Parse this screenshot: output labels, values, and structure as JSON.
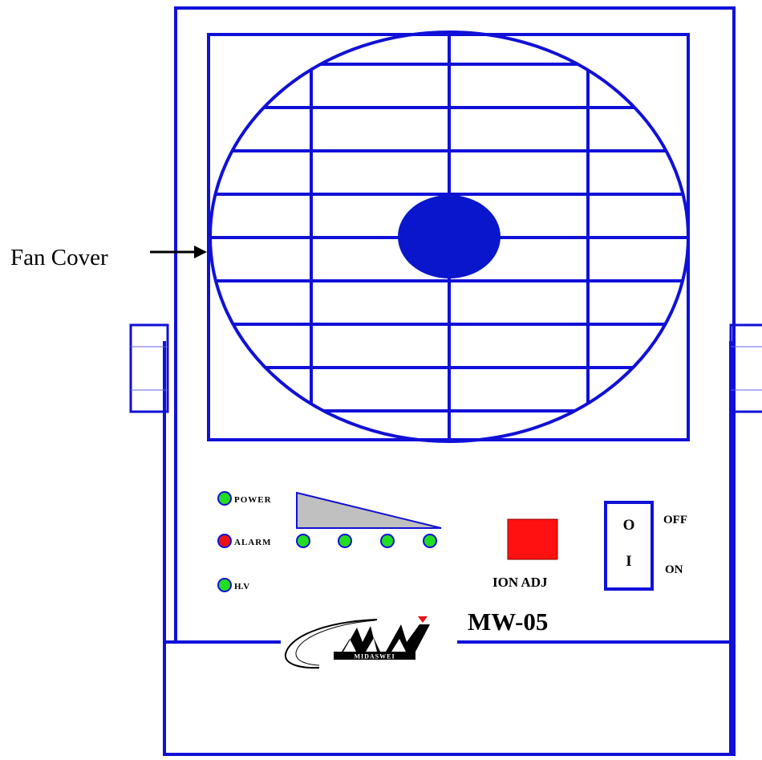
{
  "callout": {
    "fan_cover": "Fan Cover"
  },
  "indicators": {
    "power": "POWER",
    "alarm": "ALARM",
    "hv": "H.V"
  },
  "controls": {
    "ion_adj": "ION ADJ",
    "switch_off_symbol": "O",
    "switch_on_symbol": "I",
    "off": "OFF",
    "on": "ON"
  },
  "model": "MW-05",
  "logo": {
    "text": "MIDASWEI"
  },
  "colors": {
    "outline": "#1010d8",
    "hub": "#0a16cc",
    "led_green": "#22dd22",
    "led_red": "#ee1111",
    "knob_red": "#ff1111",
    "ramp_gray": "#c0c0c0"
  },
  "icons": [
    "arrow-right-icon",
    "fan-grille-icon",
    "led-icon",
    "toggle-switch-icon",
    "midaswei-logo-icon"
  ]
}
